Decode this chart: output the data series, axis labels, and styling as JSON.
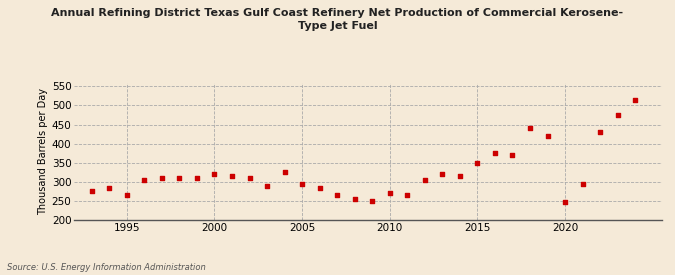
{
  "title": "Annual Refining District Texas Gulf Coast Refinery Net Production of Commercial Kerosene-\nType Jet Fuel",
  "ylabel": "Thousand Barrels per Day",
  "source": "Source: U.S. Energy Information Administration",
  "background_color": "#f5ead8",
  "plot_bg_color": "#f5ead8",
  "marker_color": "#cc0000",
  "xlim": [
    1992,
    2025.5
  ],
  "ylim": [
    200,
    560
  ],
  "yticks": [
    200,
    250,
    300,
    350,
    400,
    450,
    500,
    550
  ],
  "xticks": [
    1995,
    2000,
    2005,
    2010,
    2015,
    2020
  ],
  "years": [
    1993,
    1994,
    1995,
    1996,
    1997,
    1998,
    1999,
    2000,
    2001,
    2002,
    2003,
    2004,
    2005,
    2006,
    2007,
    2008,
    2009,
    2010,
    2011,
    2012,
    2013,
    2014,
    2015,
    2016,
    2017,
    2018,
    2019,
    2020,
    2021,
    2022,
    2023,
    2024
  ],
  "values": [
    275,
    285,
    265,
    305,
    310,
    310,
    310,
    320,
    315,
    310,
    290,
    325,
    295,
    285,
    265,
    255,
    250,
    270,
    265,
    305,
    320,
    315,
    350,
    375,
    370,
    440,
    420,
    248,
    295,
    430,
    475,
    515
  ]
}
